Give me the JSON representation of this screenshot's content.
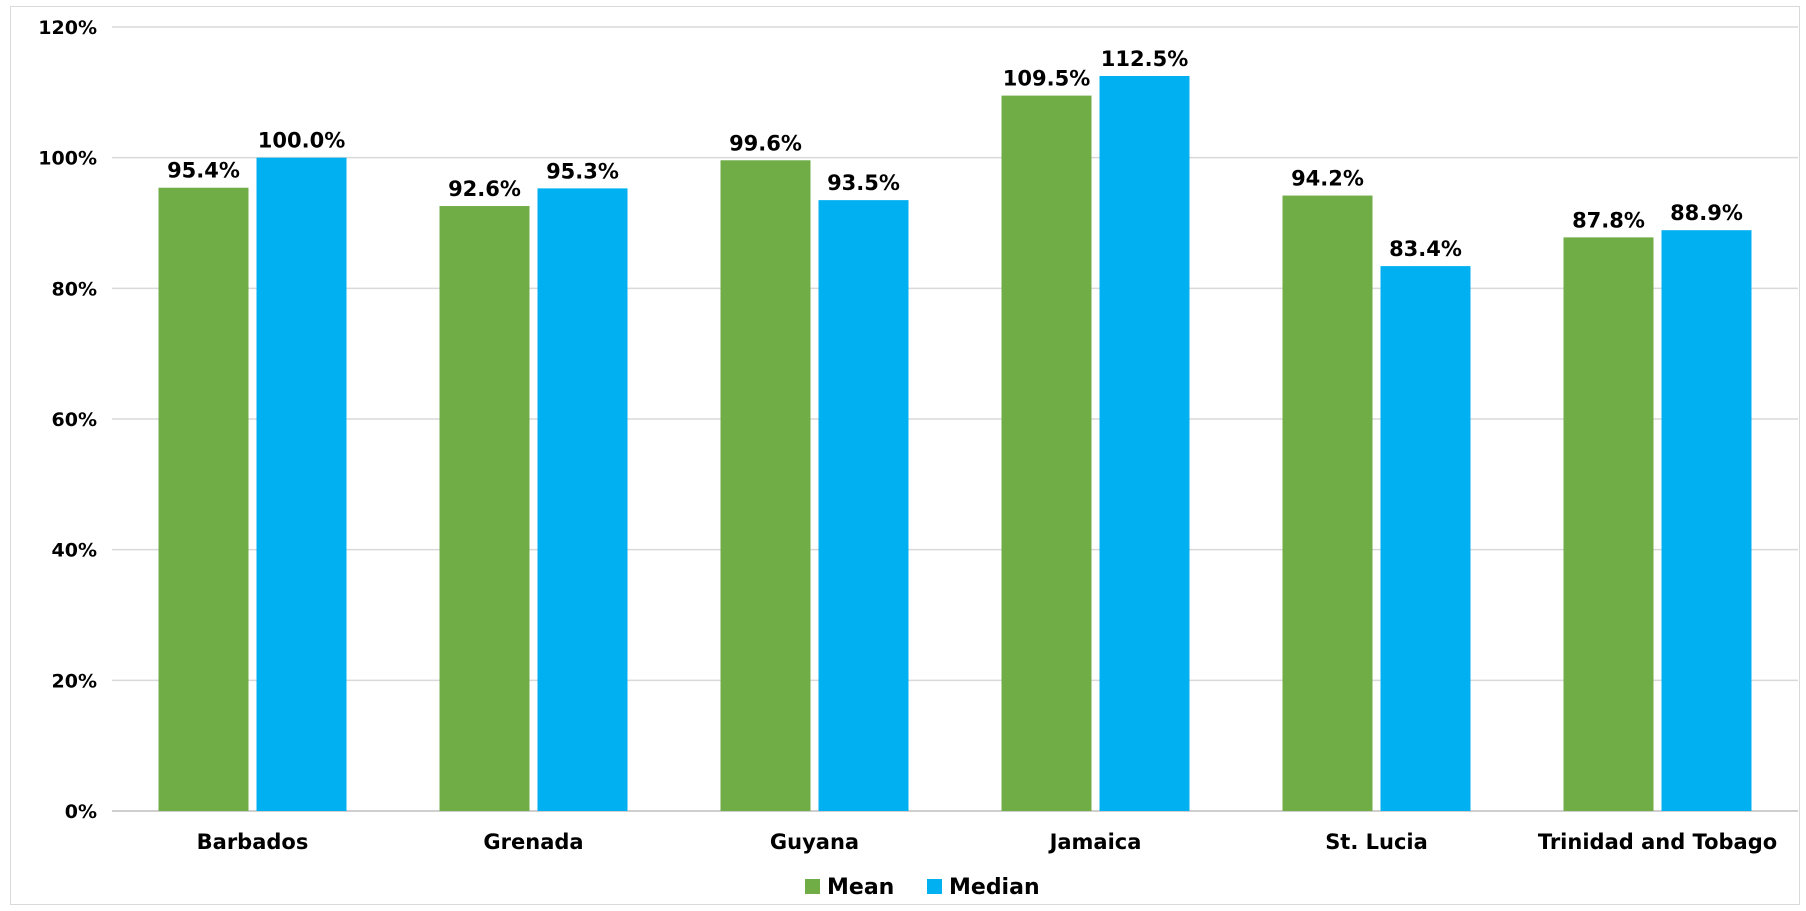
{
  "chart_data": {
    "type": "bar",
    "categories": [
      "Barbados",
      "Grenada",
      "Guyana",
      "Jamaica",
      "St. Lucia",
      "Trinidad and Tobago"
    ],
    "series": [
      {
        "name": "Mean",
        "color": "#70ad47",
        "values": [
          95.4,
          92.6,
          99.6,
          109.5,
          94.2,
          87.8
        ],
        "labels": [
          "95.4%",
          "92.6%",
          "99.6%",
          "109.5%",
          "94.2%",
          "87.8%"
        ]
      },
      {
        "name": "Median",
        "color": "#00b0f0",
        "values": [
          100.0,
          95.3,
          93.5,
          112.5,
          83.4,
          88.9
        ],
        "labels": [
          "100.0%",
          "95.3%",
          "93.5%",
          "112.5%",
          "83.4%",
          "88.9%"
        ]
      }
    ],
    "ylim": [
      0,
      120
    ],
    "yticks": [
      0,
      20,
      40,
      60,
      80,
      100,
      120
    ],
    "ytick_labels": [
      "0%",
      "20%",
      "40%",
      "60%",
      "80%",
      "100%",
      "120%"
    ],
    "grid": true,
    "legend_position": "bottom-center",
    "title": "",
    "xlabel": "",
    "ylabel": ""
  }
}
